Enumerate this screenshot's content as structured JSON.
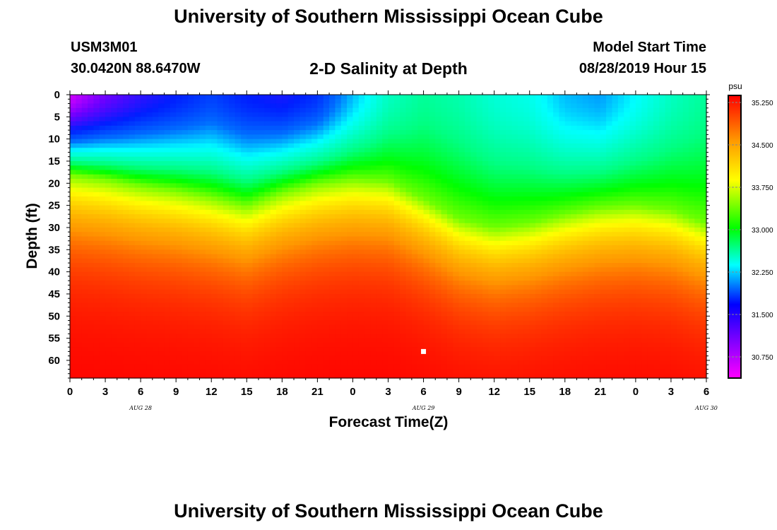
{
  "header": {
    "title": "University of Southern Mississippi Ocean Cube",
    "station": "USM3M01",
    "coords": "30.0420N 88.6470W",
    "subtitle": "2-D Salinity at Depth",
    "start_label": "Model Start Time",
    "start_value": "08/28/2019 Hour 15"
  },
  "footer": {
    "title": "University of Southern Mississippi Ocean Cube"
  },
  "colors": {
    "magenta": "#ff00ff",
    "blue": "#0033ff",
    "cyan": "#00ffff",
    "green": "#00ff00",
    "yellow": "#ffff00",
    "orange": "#ff9900",
    "red": "#ff0000"
  },
  "chart_data": {
    "type": "heatmap",
    "title": "2-D Salinity at Depth",
    "xlabel": "Forecast Time(Z)",
    "ylabel": "Depth (ft)",
    "x_ticks": [
      "0",
      "3",
      "6",
      "9",
      "12",
      "15",
      "18",
      "21",
      "0",
      "3",
      "6",
      "9",
      "12",
      "15",
      "18",
      "21",
      "0",
      "3",
      "6"
    ],
    "date_labels": [
      {
        "label": "AUG 28",
        "hour": 6
      },
      {
        "label": "AUG 29",
        "hour": 30
      },
      {
        "label": "AUG 30",
        "hour": 54
      }
    ],
    "x_range_hours": [
      0,
      54
    ],
    "y_ticks": [
      0,
      5,
      10,
      15,
      20,
      25,
      30,
      35,
      40,
      45,
      50,
      55,
      60
    ],
    "y_range": [
      0,
      64
    ],
    "colorbar": {
      "unit": "psu",
      "range": [
        30.375,
        35.375
      ],
      "tick_labels": [
        "35.250",
        "34.500",
        "33.750",
        "33.000",
        "32.250",
        "31.500",
        "30.750"
      ],
      "tick_values": [
        35.25,
        34.5,
        33.75,
        33.0,
        32.25,
        31.5,
        30.75
      ]
    },
    "halocline": {
      "description": "depth of 33.75 psu isohaline by forecast hour",
      "hours": [
        0,
        3,
        6,
        9,
        12,
        15,
        18,
        21,
        24,
        27,
        30,
        33,
        36,
        39,
        42,
        45,
        48,
        51,
        54
      ],
      "depth": [
        18,
        19,
        20.5,
        21.5,
        23,
        25,
        22,
        20,
        19,
        19.5,
        23.5,
        28,
        30,
        29,
        27,
        25.5,
        25,
        26,
        29
      ]
    },
    "surface": {
      "description": "surface salinity by forecast hour",
      "hours": [
        0,
        3,
        6,
        9,
        12,
        15,
        18,
        21,
        24,
        27,
        30,
        33,
        36,
        39,
        42,
        45,
        48,
        51,
        54
      ],
      "psu": [
        30.6,
        31.0,
        31.3,
        31.5,
        31.7,
        31.5,
        31.4,
        31.6,
        32.2,
        32.7,
        32.9,
        32.8,
        32.6,
        32.5,
        32.2,
        32.1,
        32.4,
        32.7,
        32.9
      ]
    },
    "marker": {
      "hour": 30,
      "depth": 58
    }
  }
}
